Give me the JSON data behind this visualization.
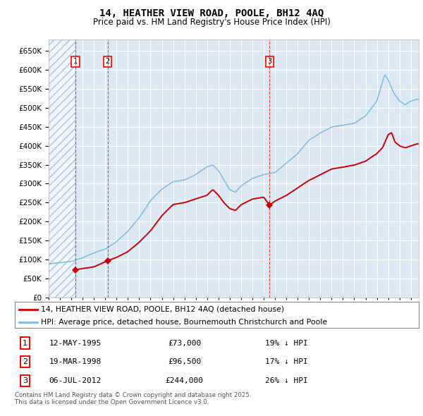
{
  "title": "14, HEATHER VIEW ROAD, POOLE, BH12 4AQ",
  "subtitle": "Price paid vs. HM Land Registry's House Price Index (HPI)",
  "legend_line1": "14, HEATHER VIEW ROAD, POOLE, BH12 4AQ (detached house)",
  "legend_line2": "HPI: Average price, detached house, Bournemouth Christchurch and Poole",
  "footer": "Contains HM Land Registry data © Crown copyright and database right 2025.\nThis data is licensed under the Open Government Licence v3.0.",
  "transactions": [
    {
      "num": 1,
      "date": "12-MAY-1995",
      "price": 73000,
      "pct": "19%",
      "direction": "↓",
      "year": 1995.37
    },
    {
      "num": 2,
      "date": "19-MAR-1998",
      "price": 96500,
      "pct": "17%",
      "direction": "↓",
      "year": 1998.21
    },
    {
      "num": 3,
      "date": "06-JUL-2012",
      "price": 244000,
      "pct": "26%",
      "direction": "↓",
      "year": 2012.51
    }
  ],
  "hpi_color": "#7fb9e0",
  "price_color": "#cc0000",
  "bg_color": "#dce9f5",
  "ylim": [
    0,
    680000
  ],
  "yticks": [
    0,
    50000,
    100000,
    150000,
    200000,
    250000,
    300000,
    350000,
    400000,
    450000,
    500000,
    550000,
    600000,
    650000
  ],
  "xlim_start": 1993.0,
  "xlim_end": 2025.7
}
